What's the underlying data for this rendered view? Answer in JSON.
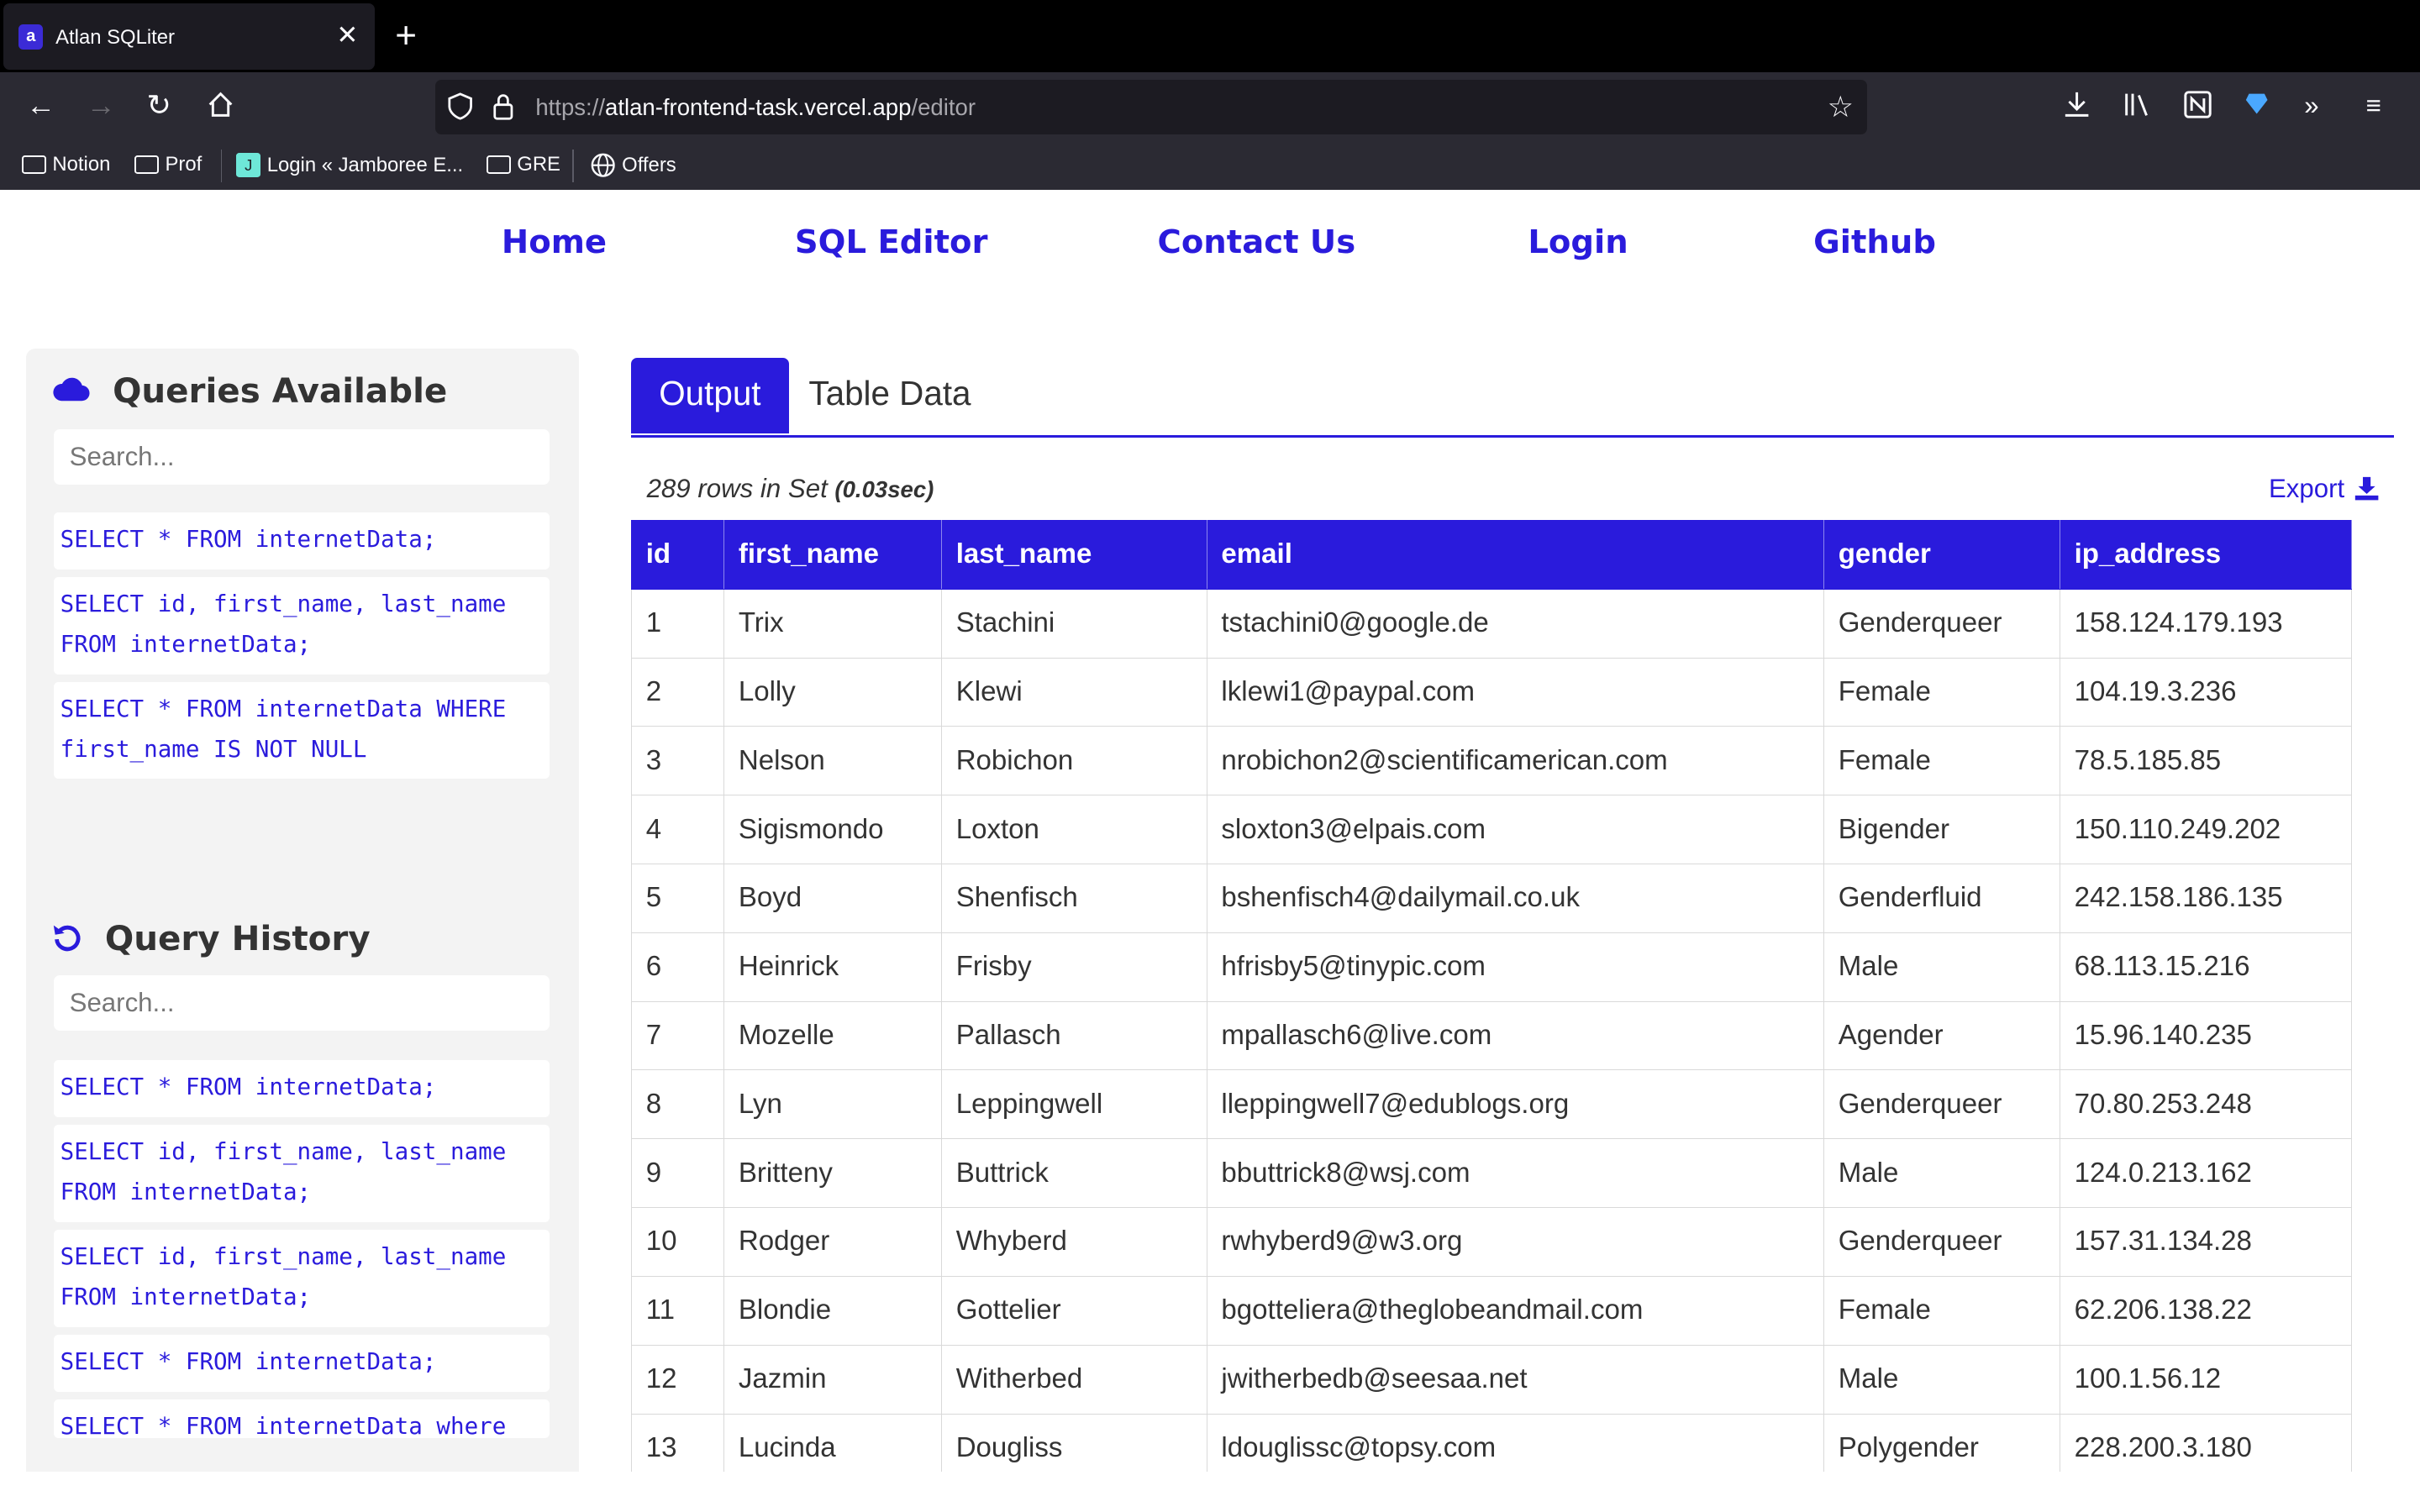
{
  "browser": {
    "tab_title": "Atlan SQLiter",
    "tab_favicon_letter": "a",
    "url_prefix": "https://",
    "url_domain": "atlan-frontend-task.vercel.app",
    "url_path": "/editor",
    "bookmarks": [
      {
        "label": "Notion",
        "icon": "folder-icon"
      },
      {
        "label": "Prof",
        "icon": "folder-icon"
      },
      {
        "label": "Login « Jamboree E...",
        "icon": "site-icon"
      },
      {
        "label": "GRE",
        "icon": "folder-icon"
      },
      {
        "label": "Offers",
        "icon": "globe-icon"
      }
    ],
    "jbox_letter": "J"
  },
  "nav": {
    "home": "Home",
    "sql_editor": "SQL Editor",
    "contact": "Contact Us",
    "login": "Login",
    "github": "Github"
  },
  "sidebar": {
    "queries_title": "Queries Available",
    "queries_search_placeholder": "Search...",
    "queries": [
      "SELECT * FROM internetData;",
      "SELECT id, first_name, last_name FROM internetData;",
      "SELECT * FROM internetData WHERE first_name IS NOT NULL"
    ],
    "history_title": "Query History",
    "history_search_placeholder": "Search...",
    "history": [
      "SELECT * FROM internetData;",
      "SELECT id, first_name, last_name FROM internetData;",
      "SELECT id, first_name, last_name FROM internetData;",
      "SELECT * FROM internetData;",
      "SELECT * FROM internetData where"
    ]
  },
  "main": {
    "tabs": [
      "Output",
      "Table Data"
    ],
    "rowcount_text": "289 rows in Set ",
    "rowcount_time": "(0.03sec)",
    "export_label": "Export",
    "columns": [
      "id",
      "first_name",
      "last_name",
      "email",
      "gender",
      "ip_address"
    ],
    "rows": [
      [
        "1",
        "Trix",
        "Stachini",
        "tstachini0@google.de",
        "Genderqueer",
        "158.124.179.193"
      ],
      [
        "2",
        "Lolly",
        "Klewi",
        "lklewi1@paypal.com",
        "Female",
        "104.19.3.236"
      ],
      [
        "3",
        "Nelson",
        "Robichon",
        "nrobichon2@scientificamerican.com",
        "Female",
        "78.5.185.85"
      ],
      [
        "4",
        "Sigismondo",
        "Loxton",
        "sloxton3@elpais.com",
        "Bigender",
        "150.110.249.202"
      ],
      [
        "5",
        "Boyd",
        "Shenfisch",
        "bshenfisch4@dailymail.co.uk",
        "Genderfluid",
        "242.158.186.135"
      ],
      [
        "6",
        "Heinrick",
        "Frisby",
        "hfrisby5@tinypic.com",
        "Male",
        "68.113.15.216"
      ],
      [
        "7",
        "Mozelle",
        "Pallasch",
        "mpallasch6@live.com",
        "Agender",
        "15.96.140.235"
      ],
      [
        "8",
        "Lyn",
        "Leppingwell",
        "lleppingwell7@edublogs.org",
        "Genderqueer",
        "70.80.253.248"
      ],
      [
        "9",
        "Britteny",
        "Buttrick",
        "bbuttrick8@wsj.com",
        "Male",
        "124.0.213.162"
      ],
      [
        "10",
        "Rodger",
        "Whyberd",
        "rwhyberd9@w3.org",
        "Genderqueer",
        "157.31.134.28"
      ],
      [
        "11",
        "Blondie",
        "Gottelier",
        "bgotteliera@theglobeandmail.com",
        "Female",
        "62.206.138.22"
      ],
      [
        "12",
        "Jazmin",
        "Witherbed",
        "jwitherbedb@seesaa.net",
        "Male",
        "100.1.56.12"
      ],
      [
        "13",
        "Lucinda",
        "Dougliss",
        "ldouglissc@topsy.com",
        "Polygender",
        "228.200.3.180"
      ]
    ]
  },
  "colors": {
    "accent": "#2a1bdc",
    "chrome_dark": "#2b2a33",
    "sidebar_bg": "#f3f3f3"
  }
}
